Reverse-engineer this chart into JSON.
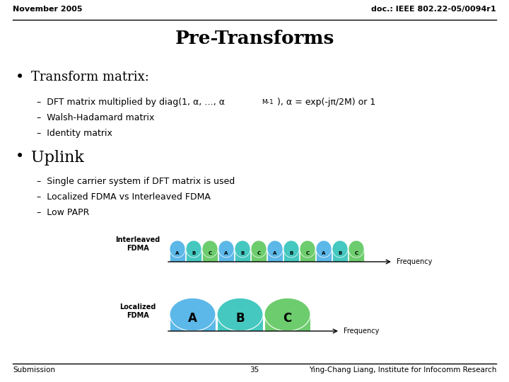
{
  "header_left": "November 2005",
  "header_right": "doc.: IEEE 802.22-05/0094r1",
  "title": "Pre-Transforms",
  "bullet1": "Transform matrix:",
  "bullet2": "Uplink",
  "sub1_1a": "–  DFT matrix multiplied by diag(1, α, …, α",
  "sub1_1_sup": "M-1",
  "sub1_1b": "), α = exp(-jπ/2M) or 1",
  "sub1_2": "–  Walsh-Hadamard matrix",
  "sub1_3": "–  Identity matrix",
  "sub2_1": "–  Single carrier system if DFT matrix is used",
  "sub2_2": "–  Localized FDMA vs Interleaved FDMA",
  "sub2_3": "–  Low PAPR",
  "label_interleaved": "Interleaved\nFDMA",
  "label_localized": "Localized\nFDMA",
  "freq_label": "Frequency",
  "footer_left": "Submission",
  "footer_center": "35",
  "footer_right": "Ying-Chang Liang, Institute for Infocomm Research",
  "color_A": "#5cb8e8",
  "color_B": "#45c8c0",
  "color_C": "#6dcc6d",
  "bg_color": "#ffffff",
  "text_color": "#000000"
}
